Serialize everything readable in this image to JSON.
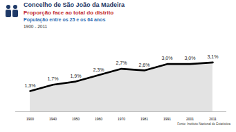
{
  "chart_data": {
    "type": "line",
    "title": "Concelho de São João da Madeira",
    "subtitle": [
      "Proporção face ao total do distrito",
      "População entre os 25 e os 64 anos",
      "1900 - 2011"
    ],
    "categories": [
      "1900",
      "1940",
      "1950",
      "1960",
      "1970",
      "1981",
      "1991",
      "2001",
      "2011"
    ],
    "values": [
      1.3,
      1.7,
      1.9,
      2.3,
      2.7,
      2.6,
      3.0,
      3.0,
      3.1
    ],
    "value_labels": [
      "1,3%",
      "1,7%",
      "1,9%",
      "2,3%",
      "2,7%",
      "2,6%",
      "3,0%",
      "3,0%",
      "3,1%"
    ],
    "color": "#000000",
    "ylim": [
      0,
      4.5
    ],
    "data_labels": true,
    "tick_labels": "x",
    "grid": false,
    "caption": "Fonte: Instituto Nacional de Estatística"
  }
}
